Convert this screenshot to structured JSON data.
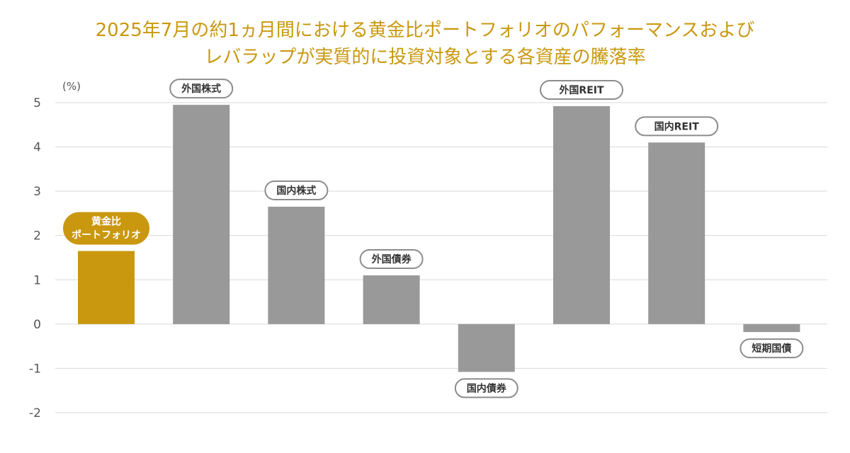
{
  "chart_data": {
    "type": "bar",
    "title_lines": [
      "2025年7月の約1ヵ月間における黄金比ポートフォリオのパフォーマンスおよび",
      "レバラップが実質的に投資対象とする各資産の騰落率"
    ],
    "unit_label": "(%)",
    "ylim": [
      -2,
      5
    ],
    "yticks": [
      5,
      4,
      3,
      2,
      1,
      0,
      -1,
      -2
    ],
    "grid": true,
    "categories": [
      [
        "黄金比",
        "ポートフォリオ"
      ],
      [
        "外国株式"
      ],
      [
        "国内株式"
      ],
      [
        "外国債券"
      ],
      [
        "国内債券"
      ],
      [
        "外国REIT"
      ],
      [
        "国内REIT"
      ],
      [
        "短期国債"
      ]
    ],
    "values": [
      1.65,
      4.95,
      2.65,
      1.1,
      -1.08,
      4.92,
      4.1,
      -0.18
    ],
    "highlight_index": 0,
    "colors": {
      "highlight": "#c9980f",
      "bar": "#999999",
      "title": "#c9980f"
    }
  }
}
